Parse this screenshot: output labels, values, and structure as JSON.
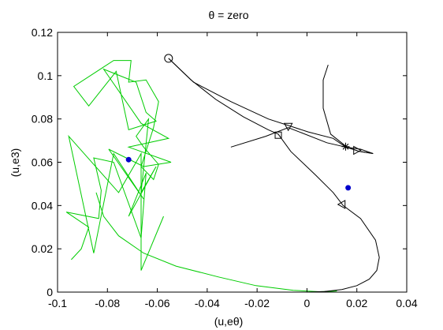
{
  "chart_data": {
    "type": "line",
    "title": "θ = zero",
    "xlabel": "(u,eθ)",
    "ylabel": "(u,e3)",
    "xlim": [
      -0.1,
      0.04
    ],
    "ylim": [
      0,
      0.12
    ],
    "xticks": [
      -0.1,
      -0.08,
      -0.06,
      -0.04,
      -0.02,
      0,
      0.02,
      0.04
    ],
    "xtick_labels": [
      "-0.1",
      "-0.08",
      "-0.06",
      "-0.04",
      "-0.02",
      "0",
      "0.02",
      "0.04"
    ],
    "yticks": [
      0,
      0.02,
      0.04,
      0.06,
      0.08,
      0.1,
      0.12
    ],
    "ytick_labels": [
      "0",
      "0.02",
      "0.04",
      "0.06",
      "0.08",
      "0.1",
      "0.12"
    ],
    "grid": false,
    "series": [
      {
        "color": "#00cc00",
        "points": [
          [
            -0.0575,
            0.035
          ],
          [
            -0.0665,
            0.01
          ],
          [
            -0.0665,
            0.064
          ],
          [
            -0.0755,
            0.046
          ],
          [
            -0.0955,
            0.072
          ],
          [
            -0.0855,
            0.018
          ],
          [
            -0.0775,
            0.064
          ],
          [
            -0.0655,
            0.043
          ],
          [
            -0.0795,
            0.066
          ],
          [
            -0.0655,
            0.058
          ],
          [
            -0.0545,
            0.06
          ],
          [
            -0.0715,
            0.067
          ],
          [
            -0.0555,
            0.071
          ],
          [
            -0.0665,
            0.078
          ],
          [
            -0.0815,
            0.103
          ],
          [
            -0.0685,
            0.097
          ],
          [
            -0.0645,
            0.083
          ],
          [
            -0.0605,
            0.079
          ],
          [
            -0.0715,
            0.075
          ],
          [
            -0.0765,
            0.102
          ],
          [
            -0.0875,
            0.086
          ],
          [
            -0.0935,
            0.095
          ],
          [
            -0.0775,
            0.107
          ],
          [
            -0.0705,
            0.107
          ],
          [
            -0.0715,
            0.097
          ],
          [
            -0.0645,
            0.098
          ],
          [
            -0.0595,
            0.088
          ],
          [
            -0.0615,
            0.076
          ],
          [
            -0.0665,
            0.058
          ],
          [
            -0.0615,
            0.052
          ],
          [
            -0.0595,
            0.059
          ],
          [
            -0.0655,
            0.067
          ],
          [
            -0.0685,
            0.072
          ],
          [
            -0.0635,
            0.08
          ],
          [
            -0.0665,
            0.046
          ],
          [
            -0.0605,
            0.058
          ],
          [
            -0.0715,
            0.035
          ],
          [
            -0.0645,
            0.055
          ],
          [
            -0.0665,
            0.025
          ],
          [
            -0.0775,
            0.06
          ],
          [
            -0.0855,
            0.062
          ],
          [
            -0.0825,
            0.047
          ],
          [
            -0.0835,
            0.034
          ],
          [
            -0.0965,
            0.037
          ],
          [
            -0.0875,
            0.03
          ],
          [
            -0.0905,
            0.02
          ],
          [
            -0.0945,
            0.015
          ]
        ]
      },
      {
        "color": "#00cc00",
        "points": [
          [
            -0.0845,
            0.046
          ],
          [
            -0.0815,
            0.035
          ],
          [
            -0.0755,
            0.026
          ],
          [
            -0.0655,
            0.018
          ],
          [
            -0.0525,
            0.012
          ],
          [
            -0.0355,
            0.007
          ],
          [
            -0.0205,
            0.003
          ],
          [
            -0.0055,
            0.0008
          ],
          [
            0.005,
            0.0002
          ],
          [
            0.012,
            0.0005
          ]
        ]
      },
      {
        "color": "#000000",
        "points": [
          [
            -0.0555,
            0.108
          ],
          [
            -0.0465,
            0.098
          ],
          [
            -0.0365,
            0.089
          ],
          [
            -0.0255,
            0.081
          ],
          [
            -0.0155,
            0.075
          ],
          [
            -0.0115,
            0.073
          ],
          [
            -0.0065,
            0.065
          ],
          [
            0.0035,
            0.054
          ],
          [
            0.0105,
            0.046
          ],
          [
            0.0145,
            0.04
          ],
          [
            0.0215,
            0.034
          ],
          [
            0.0275,
            0.024
          ],
          [
            0.029,
            0.016
          ],
          [
            0.028,
            0.01
          ],
          [
            0.025,
            0.006
          ],
          [
            0.02,
            0.003
          ],
          [
            0.014,
            0.0012
          ],
          [
            0.007,
            0.0003
          ],
          [
            0.0,
            0.0
          ]
        ]
      },
      {
        "color": "#000000",
        "points": [
          [
            -0.0555,
            0.108
          ],
          [
            -0.0455,
            0.097
          ],
          [
            -0.0305,
            0.088
          ],
          [
            -0.0155,
            0.08
          ],
          [
            0.0005,
            0.074
          ],
          [
            0.0105,
            0.071
          ],
          [
            0.0155,
            0.067
          ],
          [
            0.0215,
            0.066
          ],
          [
            0.0265,
            0.064
          ],
          [
            0.021,
            0.065
          ],
          [
            0.0155,
            0.067
          ],
          [
            0.008,
            0.069
          ],
          [
            -0.0075,
            0.076
          ],
          [
            -0.0165,
            0.072
          ],
          [
            -0.0305,
            0.067
          ]
        ]
      },
      {
        "color": "#000000",
        "points": [
          [
            0.016,
            0.067
          ],
          [
            0.0095,
            0.073
          ],
          [
            0.0065,
            0.085
          ],
          [
            0.0065,
            0.098
          ],
          [
            0.0085,
            0.105
          ]
        ]
      },
      {
        "color": "#000000",
        "points": [
          [
            0.016,
            0.067
          ],
          [
            0.021,
            0.065
          ],
          [
            0.0265,
            0.064
          ]
        ]
      }
    ],
    "markers": [
      {
        "shape": "circle",
        "x": -0.0555,
        "y": 0.108,
        "color": "#000000"
      },
      {
        "shape": "square",
        "x": -0.0115,
        "y": 0.0725,
        "color": "#000000"
      },
      {
        "shape": "triangle-down",
        "x": -0.0075,
        "y": 0.0765,
        "color": "#000000"
      },
      {
        "shape": "star",
        "x": 0.0155,
        "y": 0.0672,
        "color": "#000000"
      },
      {
        "shape": "triangle-right",
        "x": 0.02,
        "y": 0.0655,
        "color": "#000000"
      },
      {
        "shape": "triangle-left",
        "x": 0.014,
        "y": 0.0405,
        "color": "#000000"
      },
      {
        "shape": "dot",
        "x": -0.0715,
        "y": 0.0612,
        "color": "#0000cc"
      },
      {
        "shape": "dot",
        "x": 0.0165,
        "y": 0.0482,
        "color": "#0000cc"
      }
    ]
  }
}
